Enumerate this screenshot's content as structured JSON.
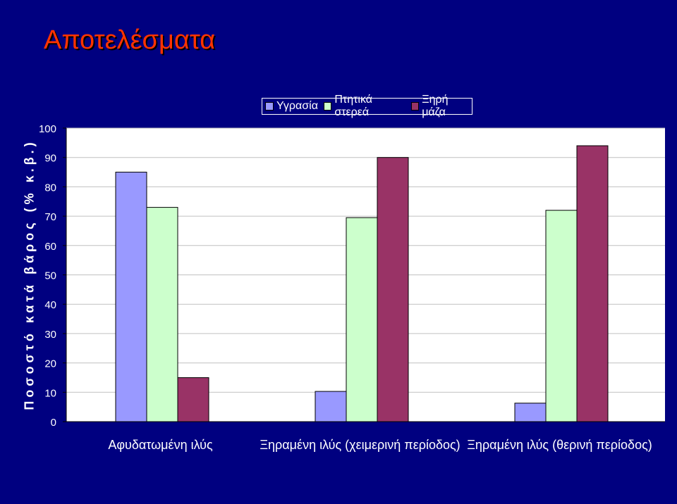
{
  "slide": {
    "title": "Αποτελέσματα",
    "colors": {
      "background": "#000080",
      "title": "#FF3300",
      "plot_area": "#FFFFFF"
    }
  },
  "chart_data": {
    "type": "bar",
    "ylabel": "Ποσοστό κατά βάρος (% κ.β.)",
    "ylim": [
      0,
      100
    ],
    "yticks": [
      0,
      10,
      20,
      30,
      40,
      50,
      60,
      70,
      80,
      90,
      100
    ],
    "grid": true,
    "legend_position": "top",
    "categories": [
      "Αφυδατωμένη ιλύς",
      "Ξηραμένη ιλύς (χειμερινή περίοδος)",
      "Ξηραμένη ιλύς (θερινή περίοδος)"
    ],
    "series": [
      {
        "name": "Υγρασία",
        "color": "#9999FF",
        "values": [
          85,
          10.3,
          6.3
        ]
      },
      {
        "name": "Πτητικά στερεά",
        "color": "#CCFFCC",
        "values": [
          73,
          69.5,
          72
        ]
      },
      {
        "name": "Ξηρή μάζα",
        "color": "#993366",
        "values": [
          15,
          90,
          94
        ]
      }
    ]
  }
}
